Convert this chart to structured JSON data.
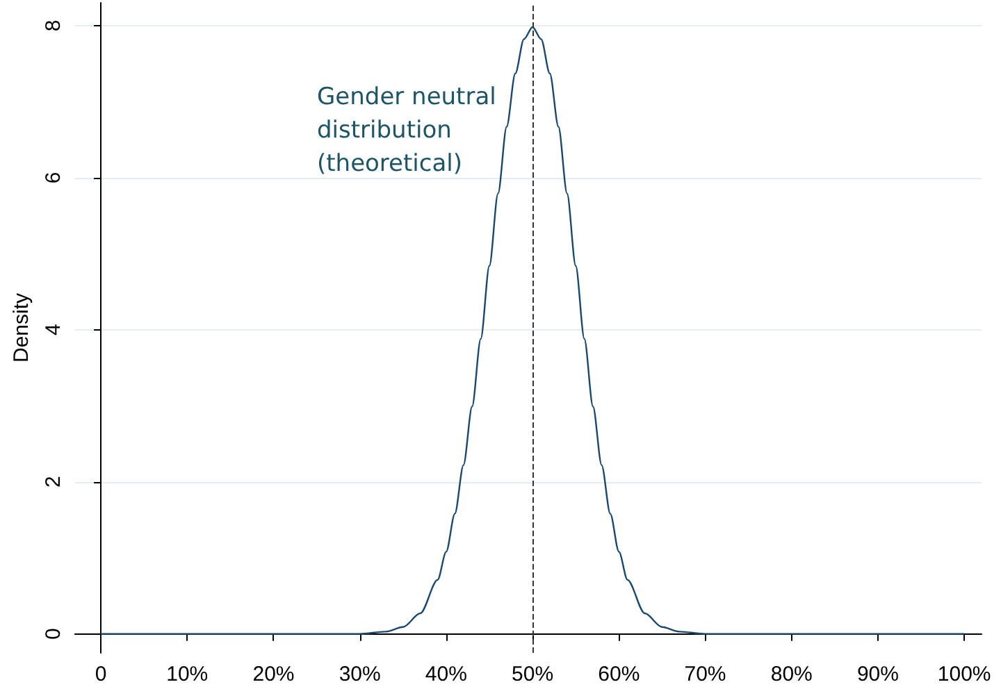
{
  "chart_data": {
    "type": "line",
    "ylabel": "Density",
    "x": [
      0,
      10,
      20,
      30,
      33,
      35,
      37,
      39,
      40,
      41,
      42,
      43,
      44,
      45,
      46,
      47,
      48,
      49,
      50,
      51,
      52,
      53,
      54,
      55,
      56,
      57,
      58,
      59,
      60,
      61,
      63,
      65,
      67,
      70,
      80,
      90,
      100
    ],
    "series": [
      {
        "color": "#1a476f",
        "values": [
          0,
          0,
          0,
          0,
          0.03,
          0.09,
          0.27,
          0.71,
          1.08,
          1.58,
          2.22,
          2.99,
          3.88,
          4.84,
          5.79,
          6.67,
          7.37,
          7.82,
          7.98,
          7.82,
          7.37,
          6.67,
          5.79,
          4.84,
          3.88,
          2.99,
          2.22,
          1.58,
          1.08,
          0.71,
          0.27,
          0.09,
          0.03,
          0,
          0,
          0,
          0
        ]
      }
    ],
    "xlim": [
      -3,
      102
    ],
    "xticks": [
      0,
      {
        "value": 10,
        "label": "10%"
      },
      {
        "value": 20,
        "label": "20%"
      },
      {
        "value": 30,
        "label": "30%"
      },
      {
        "value": 40,
        "label": "40%"
      },
      {
        "value": 50,
        "label": "50%"
      },
      {
        "value": 60,
        "label": "60%"
      },
      {
        "value": 70,
        "label": "70%"
      },
      {
        "value": 80,
        "label": "80%"
      },
      {
        "value": 90,
        "label": "90%"
      },
      {
        "value": 100,
        "label": "100%"
      }
    ],
    "ylim": [
      -0.25,
      8.3
    ],
    "yticks": [
      0,
      2,
      4,
      6,
      8
    ],
    "ref_lines": [
      {
        "axis": "x",
        "value": 50,
        "color": "#333333",
        "line_style": "dashed"
      }
    ],
    "annotations": [
      "Gender neutral\ndistribution\n(theoretical)"
    ],
    "grid": "y",
    "marker": "none",
    "line_style": "solid"
  }
}
